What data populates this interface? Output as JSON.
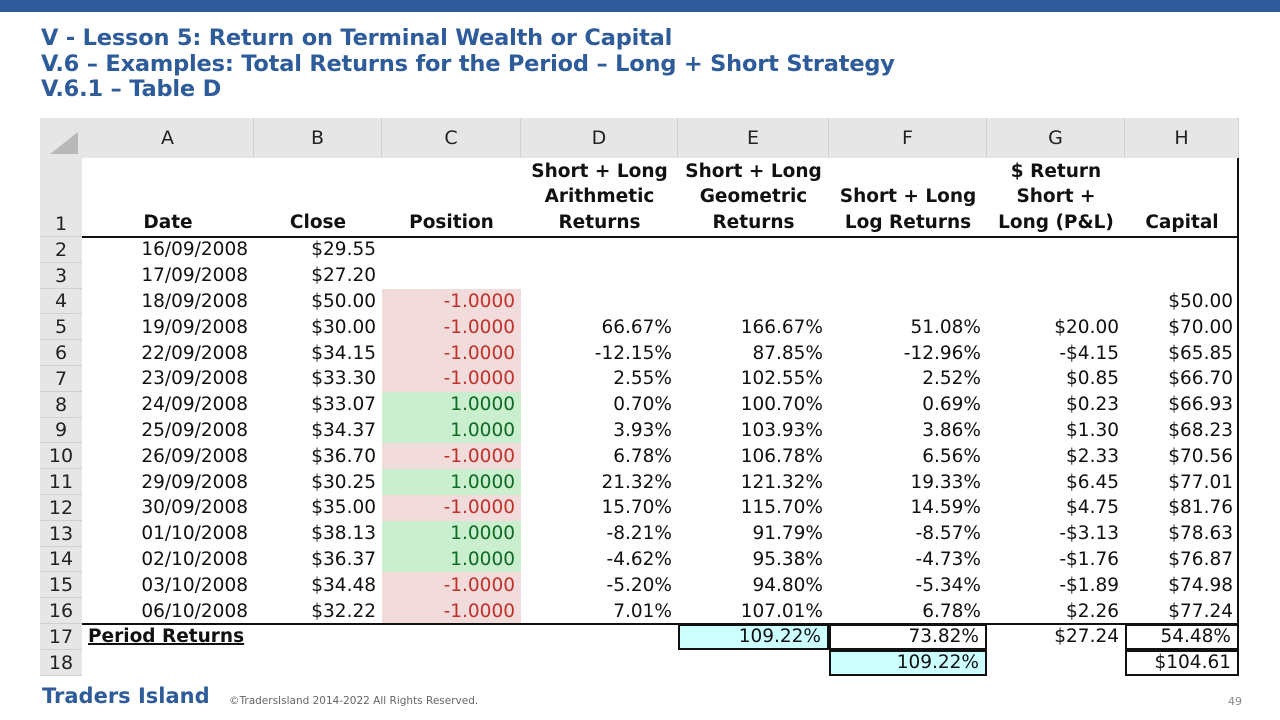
{
  "slide": {
    "title_line1": "V -  Lesson 5: Return on Terminal Wealth or Capital",
    "title_line2": "V.6 – Examples: Total Returns for the Period – Long + Short Strategy",
    "title_line3": "V.6.1 – Table D",
    "brand": "Traders Island",
    "copyright": "©TradersIsland 2014-2022 All Rights Reserved.",
    "page_number": "49",
    "colors": {
      "title": "#2e5c9a",
      "neg_fill": "#f2dcdb",
      "pos_fill": "#c9efce",
      "highlight": "#ccffff"
    }
  },
  "sheet": {
    "column_letters": [
      "A",
      "B",
      "C",
      "D",
      "E",
      "F",
      "G",
      "H"
    ],
    "header_row_number": "1",
    "headers": {
      "A": [
        "Date"
      ],
      "B": [
        "Close"
      ],
      "C": [
        "Position"
      ],
      "D": [
        "Short + Long",
        "Arithmetic",
        "Returns"
      ],
      "E": [
        "Short + Long",
        "Geometric",
        "Returns"
      ],
      "F": [
        "Short + Long",
        "Log Returns"
      ],
      "G": [
        "$ Return",
        "Short +",
        "Long (P&L)"
      ],
      "H": [
        "Capital"
      ]
    },
    "rows": [
      {
        "n": "2",
        "date": "16/09/2008",
        "close": "$29.55",
        "position": "",
        "ptype": "",
        "arith": "",
        "geo": "",
        "log": "",
        "pnl": "",
        "capital": ""
      },
      {
        "n": "3",
        "date": "17/09/2008",
        "close": "$27.20",
        "position": "",
        "ptype": "",
        "arith": "",
        "geo": "",
        "log": "",
        "pnl": "",
        "capital": ""
      },
      {
        "n": "4",
        "date": "18/09/2008",
        "close": "$50.00",
        "position": "-1.0000",
        "ptype": "neg",
        "arith": "",
        "geo": "",
        "log": "",
        "pnl": "",
        "capital": "$50.00"
      },
      {
        "n": "5",
        "date": "19/09/2008",
        "close": "$30.00",
        "position": "-1.0000",
        "ptype": "neg",
        "arith": "66.67%",
        "geo": "166.67%",
        "log": "51.08%",
        "pnl": "$20.00",
        "capital": "$70.00"
      },
      {
        "n": "6",
        "date": "22/09/2008",
        "close": "$34.15",
        "position": "-1.0000",
        "ptype": "neg",
        "arith": "-12.15%",
        "geo": "87.85%",
        "log": "-12.96%",
        "pnl": "-$4.15",
        "capital": "$65.85"
      },
      {
        "n": "7",
        "date": "23/09/2008",
        "close": "$33.30",
        "position": "-1.0000",
        "ptype": "neg",
        "arith": "2.55%",
        "geo": "102.55%",
        "log": "2.52%",
        "pnl": "$0.85",
        "capital": "$66.70"
      },
      {
        "n": "8",
        "date": "24/09/2008",
        "close": "$33.07",
        "position": "1.0000",
        "ptype": "pos",
        "arith": "0.70%",
        "geo": "100.70%",
        "log": "0.69%",
        "pnl": "$0.23",
        "capital": "$66.93"
      },
      {
        "n": "9",
        "date": "25/09/2008",
        "close": "$34.37",
        "position": "1.0000",
        "ptype": "pos",
        "arith": "3.93%",
        "geo": "103.93%",
        "log": "3.86%",
        "pnl": "$1.30",
        "capital": "$68.23"
      },
      {
        "n": "10",
        "date": "26/09/2008",
        "close": "$36.70",
        "position": "-1.0000",
        "ptype": "neg",
        "arith": "6.78%",
        "geo": "106.78%",
        "log": "6.56%",
        "pnl": "$2.33",
        "capital": "$70.56"
      },
      {
        "n": "11",
        "date": "29/09/2008",
        "close": "$30.25",
        "position": "1.0000",
        "ptype": "pos",
        "arith": "21.32%",
        "geo": "121.32%",
        "log": "19.33%",
        "pnl": "$6.45",
        "capital": "$77.01"
      },
      {
        "n": "12",
        "date": "30/09/2008",
        "close": "$35.00",
        "position": "-1.0000",
        "ptype": "neg",
        "arith": "15.70%",
        "geo": "115.70%",
        "log": "14.59%",
        "pnl": "$4.75",
        "capital": "$81.76"
      },
      {
        "n": "13",
        "date": "01/10/2008",
        "close": "$38.13",
        "position": "1.0000",
        "ptype": "pos",
        "arith": "-8.21%",
        "geo": "91.79%",
        "log": "-8.57%",
        "pnl": "-$3.13",
        "capital": "$78.63"
      },
      {
        "n": "14",
        "date": "02/10/2008",
        "close": "$36.37",
        "position": "1.0000",
        "ptype": "pos",
        "arith": "-4.62%",
        "geo": "95.38%",
        "log": "-4.73%",
        "pnl": "-$1.76",
        "capital": "$76.87"
      },
      {
        "n": "15",
        "date": "03/10/2008",
        "close": "$34.48",
        "position": "-1.0000",
        "ptype": "neg",
        "arith": "-5.20%",
        "geo": "94.80%",
        "log": "-5.34%",
        "pnl": "-$1.89",
        "capital": "$74.98"
      },
      {
        "n": "16",
        "date": "06/10/2008",
        "close": "$32.22",
        "position": "-1.0000",
        "ptype": "neg",
        "arith": "7.01%",
        "geo": "107.01%",
        "log": "6.78%",
        "pnl": "$2.26",
        "capital": "$77.24"
      }
    ],
    "period": {
      "row17_number": "17",
      "row18_number": "18",
      "label": "Period Returns",
      "geo": "109.22%",
      "log": "73.82%",
      "pnl": "$27.24",
      "capital_pct": "54.48%",
      "log_exp": "109.22%",
      "final_capital": "$104.61"
    }
  }
}
